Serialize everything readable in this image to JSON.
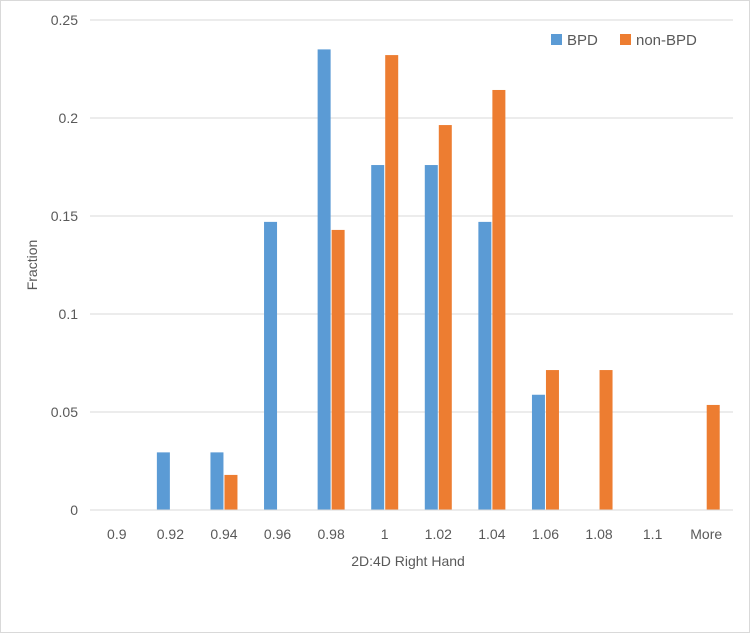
{
  "chart_data": {
    "type": "bar",
    "title": "",
    "xlabel": "2D:4D Right Hand",
    "ylabel": "Fraction",
    "categories": [
      "0.9",
      "0.92",
      "0.94",
      "0.96",
      "0.98",
      "1",
      "1.02",
      "1.04",
      "1.06",
      "1.08",
      "1.1",
      "More"
    ],
    "series": [
      {
        "name": "BPD",
        "color": "#5b9bd5",
        "values": [
          0,
          0.0294,
          0.0294,
          0.147,
          0.235,
          0.176,
          0.176,
          0.147,
          0.0588,
          0,
          0,
          0
        ]
      },
      {
        "name": "non-BPD",
        "color": "#ed7d31",
        "values": [
          0,
          0,
          0.0179,
          0,
          0.1429,
          0.2321,
          0.1964,
          0.2143,
          0.0714,
          0.0714,
          0,
          0.0536
        ]
      }
    ],
    "ylim": [
      0,
      0.25
    ],
    "yticks": [
      "0",
      "0.05",
      "0.1",
      "0.15",
      "0.2",
      "0.25"
    ],
    "grid": true,
    "gridColor": "#d9d9d9",
    "legend": "top-right"
  }
}
